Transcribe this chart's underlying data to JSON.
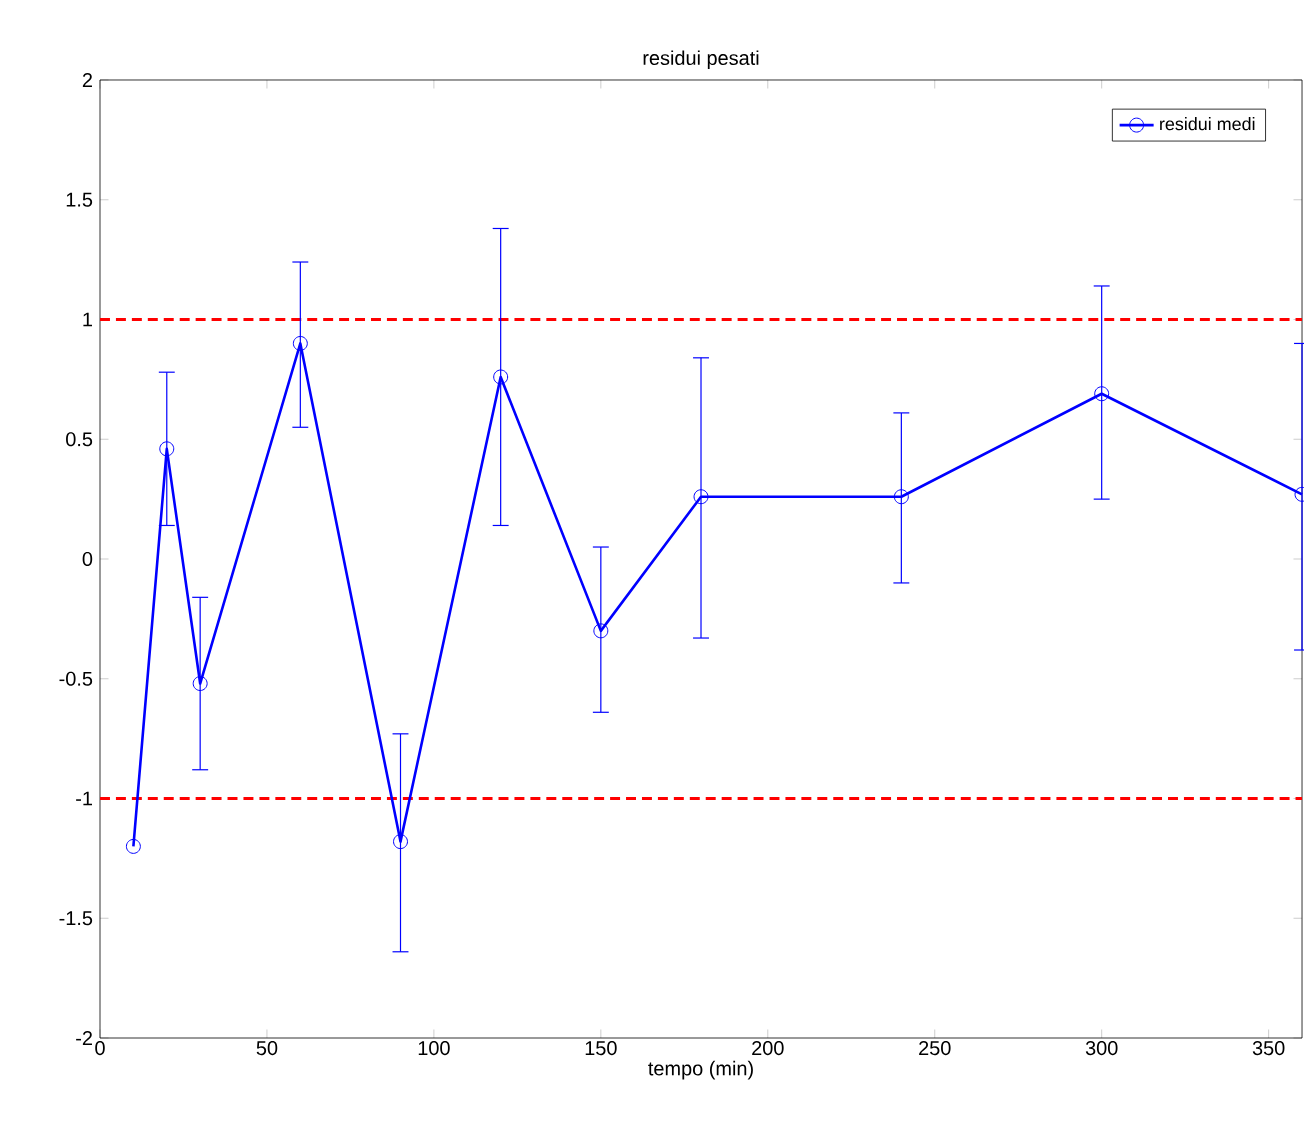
{
  "chart_data": {
    "type": "line",
    "title": "residui pesati",
    "xlabel": "tempo (min)",
    "x": [
      10,
      20,
      30,
      60,
      90,
      120,
      150,
      180,
      240,
      300,
      360
    ],
    "series": [
      {
        "name": "residui medi",
        "color": "#0000ff",
        "values": [
          -1.2,
          0.46,
          -0.52,
          0.9,
          -1.18,
          0.76,
          -0.3,
          0.26,
          0.26,
          0.69,
          0.27
        ],
        "errors": [
          null,
          [
            0.14,
            0.78
          ],
          [
            -0.88,
            -0.16
          ],
          [
            0.55,
            1.24
          ],
          [
            -1.64,
            -0.73
          ],
          [
            0.14,
            1.38
          ],
          [
            -0.64,
            0.05
          ],
          [
            -0.33,
            0.84
          ],
          [
            -0.1,
            0.61
          ],
          [
            0.25,
            1.14
          ],
          [
            -0.38,
            0.9
          ]
        ]
      }
    ],
    "xlim": [
      0,
      360
    ],
    "ylim": [
      -2,
      2
    ],
    "xticks": [
      0,
      50,
      100,
      150,
      200,
      250,
      300,
      350
    ],
    "yticks": [
      -2,
      -1.5,
      -1,
      -0.5,
      0,
      0.5,
      1,
      1.5,
      2
    ],
    "ref_lines": [
      {
        "axis": "y",
        "value": 1,
        "color": "#ff0000",
        "line_style": "dashed"
      },
      {
        "axis": "y",
        "value": -1,
        "color": "#ff0000",
        "line_style": "dashed"
      }
    ],
    "marker": "circle",
    "line_style": "solid",
    "legend": "top right",
    "grid": false
  }
}
